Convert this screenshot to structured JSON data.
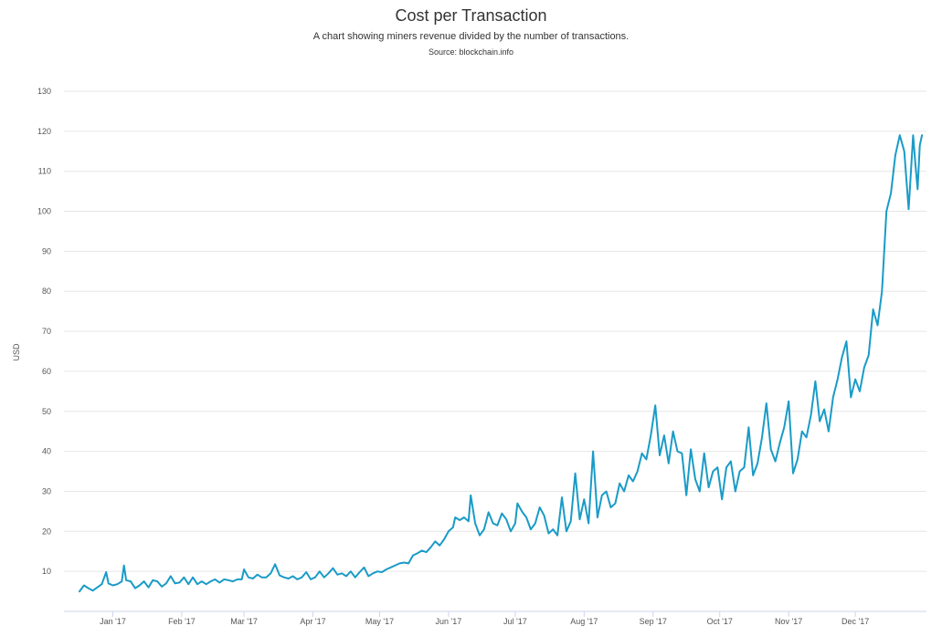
{
  "chart_data": {
    "type": "line",
    "title": "Cost per Transaction",
    "subtitle": "A chart showing miners revenue divided by the number of transactions.",
    "source": "Source: blockchain.info",
    "xlabel": "",
    "ylabel": "USD",
    "ylim": [
      0,
      130
    ],
    "yticks": [
      10,
      20,
      30,
      40,
      50,
      60,
      70,
      80,
      90,
      100,
      110,
      120,
      130
    ],
    "xticks": [
      "Jan '17",
      "Feb '17",
      "Mar '17",
      "Apr '17",
      "May '17",
      "Jun '17",
      "Jul '17",
      "Aug '17",
      "Sep '17",
      "Oct '17",
      "Nov '17",
      "Dec '17"
    ],
    "x_start": "2016-12-17",
    "x_end": "2017-12-31",
    "grid": true,
    "line_color": "#1a9bc7",
    "series": [
      {
        "points": [
          [
            "2016-12-17",
            5
          ],
          [
            "2016-12-19",
            6.5
          ],
          [
            "2016-12-21",
            5.8
          ],
          [
            "2016-12-23",
            5.2
          ],
          [
            "2016-12-25",
            6
          ],
          [
            "2016-12-27",
            6.8
          ],
          [
            "2016-12-29",
            9.8
          ],
          [
            "2016-12-30",
            7
          ],
          [
            "2017-01-01",
            6.5
          ],
          [
            "2017-01-03",
            6.8
          ],
          [
            "2017-01-05",
            7.5
          ],
          [
            "2017-01-06",
            11.5
          ],
          [
            "2017-01-07",
            7.8
          ],
          [
            "2017-01-09",
            7.5
          ],
          [
            "2017-01-11",
            5.8
          ],
          [
            "2017-01-13",
            6.5
          ],
          [
            "2017-01-15",
            7.5
          ],
          [
            "2017-01-17",
            6
          ],
          [
            "2017-01-19",
            7.8
          ],
          [
            "2017-01-21",
            7.5
          ],
          [
            "2017-01-23",
            6.2
          ],
          [
            "2017-01-25",
            7
          ],
          [
            "2017-01-27",
            8.8
          ],
          [
            "2017-01-29",
            7
          ],
          [
            "2017-01-31",
            7.2
          ],
          [
            "2017-02-02",
            8.5
          ],
          [
            "2017-02-04",
            6.8
          ],
          [
            "2017-02-06",
            8.5
          ],
          [
            "2017-02-08",
            6.8
          ],
          [
            "2017-02-10",
            7.5
          ],
          [
            "2017-02-12",
            6.8
          ],
          [
            "2017-02-14",
            7.5
          ],
          [
            "2017-02-16",
            8
          ],
          [
            "2017-02-18",
            7.2
          ],
          [
            "2017-02-20",
            8
          ],
          [
            "2017-02-22",
            7.8
          ],
          [
            "2017-02-24",
            7.5
          ],
          [
            "2017-02-26",
            8
          ],
          [
            "2017-02-28",
            8
          ],
          [
            "2017-03-01",
            10.5
          ],
          [
            "2017-03-03",
            8.5
          ],
          [
            "2017-03-05",
            8.2
          ],
          [
            "2017-03-07",
            9.2
          ],
          [
            "2017-03-09",
            8.5
          ],
          [
            "2017-03-11",
            8.5
          ],
          [
            "2017-03-13",
            9.5
          ],
          [
            "2017-03-15",
            11.8
          ],
          [
            "2017-03-17",
            9
          ],
          [
            "2017-03-19",
            8.5
          ],
          [
            "2017-03-21",
            8.2
          ],
          [
            "2017-03-23",
            8.8
          ],
          [
            "2017-03-25",
            8
          ],
          [
            "2017-03-27",
            8.5
          ],
          [
            "2017-03-29",
            9.8
          ],
          [
            "2017-03-31",
            8
          ],
          [
            "2017-04-02",
            8.5
          ],
          [
            "2017-04-04",
            10
          ],
          [
            "2017-04-06",
            8.5
          ],
          [
            "2017-04-08",
            9.5
          ],
          [
            "2017-04-10",
            10.8
          ],
          [
            "2017-04-12",
            9.2
          ],
          [
            "2017-04-14",
            9.5
          ],
          [
            "2017-04-16",
            8.8
          ],
          [
            "2017-04-18",
            10
          ],
          [
            "2017-04-20",
            8.5
          ],
          [
            "2017-04-22",
            9.8
          ],
          [
            "2017-04-24",
            11
          ],
          [
            "2017-04-26",
            8.8
          ],
          [
            "2017-04-28",
            9.5
          ],
          [
            "2017-04-30",
            10
          ],
          [
            "2017-05-02",
            9.8
          ],
          [
            "2017-05-04",
            10.5
          ],
          [
            "2017-05-06",
            11
          ],
          [
            "2017-05-08",
            11.5
          ],
          [
            "2017-05-10",
            12
          ],
          [
            "2017-05-12",
            12.2
          ],
          [
            "2017-05-14",
            12
          ],
          [
            "2017-05-16",
            14
          ],
          [
            "2017-05-18",
            14.5
          ],
          [
            "2017-05-20",
            15.2
          ],
          [
            "2017-05-22",
            14.8
          ],
          [
            "2017-05-24",
            16
          ],
          [
            "2017-05-26",
            17.5
          ],
          [
            "2017-05-28",
            16.5
          ],
          [
            "2017-05-30",
            18
          ],
          [
            "2017-06-01",
            20
          ],
          [
            "2017-06-03",
            21
          ],
          [
            "2017-06-04",
            23.5
          ],
          [
            "2017-06-06",
            22.8
          ],
          [
            "2017-06-08",
            23.5
          ],
          [
            "2017-06-10",
            22.5
          ],
          [
            "2017-06-11",
            29
          ],
          [
            "2017-06-13",
            22
          ],
          [
            "2017-06-15",
            19
          ],
          [
            "2017-06-17",
            20.5
          ],
          [
            "2017-06-19",
            24.8
          ],
          [
            "2017-06-21",
            22
          ],
          [
            "2017-06-23",
            21.5
          ],
          [
            "2017-06-25",
            24.5
          ],
          [
            "2017-06-27",
            23
          ],
          [
            "2017-06-29",
            20
          ],
          [
            "2017-07-01",
            22
          ],
          [
            "2017-07-02",
            27
          ],
          [
            "2017-07-04",
            25
          ],
          [
            "2017-07-06",
            23.5
          ],
          [
            "2017-07-08",
            20.5
          ],
          [
            "2017-07-10",
            22
          ],
          [
            "2017-07-12",
            26
          ],
          [
            "2017-07-14",
            24
          ],
          [
            "2017-07-16",
            19.5
          ],
          [
            "2017-07-18",
            20.5
          ],
          [
            "2017-07-20",
            19
          ],
          [
            "2017-07-22",
            28.5
          ],
          [
            "2017-07-24",
            20
          ],
          [
            "2017-07-26",
            22.5
          ],
          [
            "2017-07-28",
            34.5
          ],
          [
            "2017-07-30",
            23
          ],
          [
            "2017-08-01",
            28
          ],
          [
            "2017-08-03",
            22
          ],
          [
            "2017-08-05",
            40
          ],
          [
            "2017-08-07",
            23.5
          ],
          [
            "2017-08-09",
            29
          ],
          [
            "2017-08-11",
            30
          ],
          [
            "2017-08-13",
            26
          ],
          [
            "2017-08-15",
            27
          ],
          [
            "2017-08-17",
            32
          ],
          [
            "2017-08-19",
            30
          ],
          [
            "2017-08-21",
            34
          ],
          [
            "2017-08-23",
            32.5
          ],
          [
            "2017-08-25",
            35
          ],
          [
            "2017-08-27",
            39.5
          ],
          [
            "2017-08-29",
            38
          ],
          [
            "2017-08-31",
            44
          ],
          [
            "2017-09-02",
            51.5
          ],
          [
            "2017-09-04",
            39
          ],
          [
            "2017-09-06",
            44
          ],
          [
            "2017-09-08",
            37
          ],
          [
            "2017-09-10",
            45
          ],
          [
            "2017-09-12",
            40
          ],
          [
            "2017-09-14",
            39.5
          ],
          [
            "2017-09-16",
            29
          ],
          [
            "2017-09-18",
            40.5
          ],
          [
            "2017-09-20",
            33
          ],
          [
            "2017-09-22",
            30
          ],
          [
            "2017-09-24",
            39.5
          ],
          [
            "2017-09-26",
            31
          ],
          [
            "2017-09-28",
            35
          ],
          [
            "2017-09-30",
            36
          ],
          [
            "2017-10-02",
            28
          ],
          [
            "2017-10-04",
            36
          ],
          [
            "2017-10-06",
            37.5
          ],
          [
            "2017-10-08",
            30
          ],
          [
            "2017-10-10",
            35
          ],
          [
            "2017-10-12",
            36
          ],
          [
            "2017-10-14",
            46
          ],
          [
            "2017-10-16",
            34
          ],
          [
            "2017-10-18",
            37
          ],
          [
            "2017-10-20",
            43.5
          ],
          [
            "2017-10-22",
            52
          ],
          [
            "2017-10-24",
            40.5
          ],
          [
            "2017-10-26",
            37.5
          ],
          [
            "2017-10-28",
            42
          ],
          [
            "2017-10-30",
            46
          ],
          [
            "2017-11-01",
            52.5
          ],
          [
            "2017-11-03",
            34.5
          ],
          [
            "2017-11-05",
            38
          ],
          [
            "2017-11-07",
            45
          ],
          [
            "2017-11-09",
            43.5
          ],
          [
            "2017-11-11",
            49
          ],
          [
            "2017-11-13",
            57.5
          ],
          [
            "2017-11-15",
            47.5
          ],
          [
            "2017-11-17",
            50.5
          ],
          [
            "2017-11-19",
            45
          ],
          [
            "2017-11-21",
            53.5
          ],
          [
            "2017-11-23",
            58
          ],
          [
            "2017-11-25",
            63.5
          ],
          [
            "2017-11-27",
            67.5
          ],
          [
            "2017-11-29",
            53.5
          ],
          [
            "2017-12-01",
            58
          ],
          [
            "2017-12-03",
            55
          ],
          [
            "2017-12-05",
            61
          ],
          [
            "2017-12-07",
            64
          ],
          [
            "2017-12-09",
            75.5
          ],
          [
            "2017-12-11",
            71.5
          ],
          [
            "2017-12-13",
            80
          ],
          [
            "2017-12-15",
            100
          ],
          [
            "2017-12-17",
            104.5
          ],
          [
            "2017-12-19",
            114
          ],
          [
            "2017-12-21",
            119
          ],
          [
            "2017-12-23",
            115
          ],
          [
            "2017-12-25",
            100.5
          ],
          [
            "2017-12-27",
            119
          ],
          [
            "2017-12-28",
            112
          ],
          [
            "2017-12-29",
            105.5
          ],
          [
            "2017-12-30",
            116.5
          ],
          [
            "2017-12-31",
            119
          ]
        ]
      }
    ]
  }
}
